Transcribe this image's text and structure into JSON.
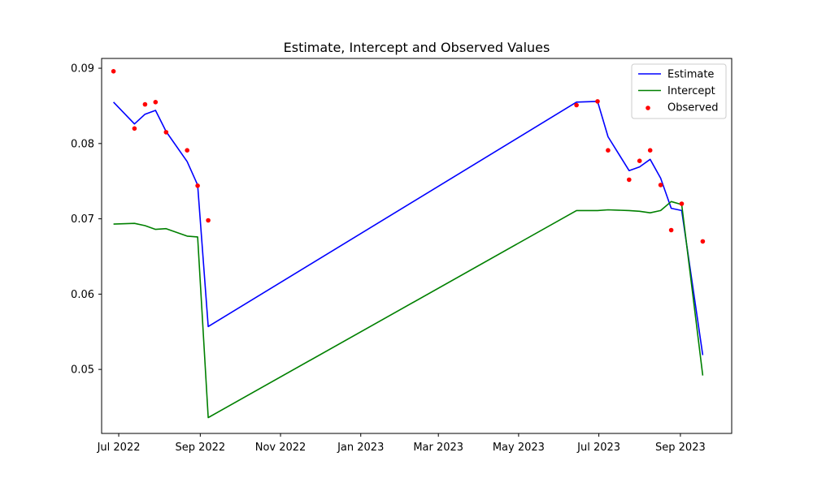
{
  "chart_data": {
    "type": "line",
    "title": "Estimate, Intercept and  Observed Values",
    "xlabel": "",
    "ylabel": "",
    "x_axis_type": "date",
    "xlim": [
      "2022-06-18",
      "2023-10-10"
    ],
    "ylim": [
      0.0415,
      0.0913
    ],
    "x_ticks": [
      {
        "date": "2022-07-01",
        "label": "Jul 2022"
      },
      {
        "date": "2022-09-01",
        "label": "Sep 2022"
      },
      {
        "date": "2022-11-01",
        "label": "Nov 2022"
      },
      {
        "date": "2023-01-01",
        "label": "Jan 2023"
      },
      {
        "date": "2023-03-01",
        "label": "Mar 2023"
      },
      {
        "date": "2023-05-01",
        "label": "May 2023"
      },
      {
        "date": "2023-07-01",
        "label": "Jul 2023"
      },
      {
        "date": "2023-09-01",
        "label": "Sep 2023"
      }
    ],
    "y_ticks": [
      {
        "value": 0.05,
        "label": "0.05"
      },
      {
        "value": 0.06,
        "label": "0.06"
      },
      {
        "value": 0.07,
        "label": "0.07"
      },
      {
        "value": 0.08,
        "label": "0.08"
      },
      {
        "value": 0.09,
        "label": "0.09"
      }
    ],
    "grid": false,
    "legend_position": "top-right",
    "series": [
      {
        "name": "Estimate",
        "kind": "line",
        "color": "#0000ff",
        "x": [
          "2022-06-27",
          "2022-07-13",
          "2022-07-21",
          "2022-07-29",
          "2022-08-06",
          "2022-08-22",
          "2022-08-30",
          "2022-09-07",
          "2023-06-14",
          "2023-06-30",
          "2023-07-08",
          "2023-07-24",
          "2023-08-01",
          "2023-08-09",
          "2023-08-17",
          "2023-08-25",
          "2023-09-02",
          "2023-09-18"
        ],
        "y": [
          0.0855,
          0.0826,
          0.0839,
          0.0844,
          0.0816,
          0.0776,
          0.0745,
          0.0557,
          0.0855,
          0.0856,
          0.0809,
          0.0764,
          0.0769,
          0.0779,
          0.0754,
          0.0714,
          0.0711,
          0.0519
        ]
      },
      {
        "name": "Intercept",
        "kind": "line",
        "color": "#008000",
        "x": [
          "2022-06-27",
          "2022-07-13",
          "2022-07-21",
          "2022-07-29",
          "2022-08-06",
          "2022-08-22",
          "2022-08-30",
          "2022-09-07",
          "2023-06-14",
          "2023-06-30",
          "2023-07-08",
          "2023-07-24",
          "2023-08-01",
          "2023-08-09",
          "2023-08-17",
          "2023-08-25",
          "2023-09-02",
          "2023-09-18"
        ],
        "y": [
          0.0693,
          0.0694,
          0.0691,
          0.0686,
          0.0687,
          0.0677,
          0.0676,
          0.0436,
          0.0711,
          0.0711,
          0.0712,
          0.0711,
          0.071,
          0.0708,
          0.0711,
          0.0723,
          0.0719,
          0.0492
        ]
      },
      {
        "name": "Observed",
        "kind": "scatter",
        "color": "#ff0000",
        "x": [
          "2022-06-27",
          "2022-07-13",
          "2022-07-21",
          "2022-07-29",
          "2022-08-06",
          "2022-08-22",
          "2022-08-30",
          "2022-09-07",
          "2023-06-14",
          "2023-06-30",
          "2023-07-08",
          "2023-07-24",
          "2023-08-01",
          "2023-08-09",
          "2023-08-17",
          "2023-08-25",
          "2023-09-02",
          "2023-09-18"
        ],
        "y": [
          0.0896,
          0.082,
          0.0852,
          0.0855,
          0.0815,
          0.0791,
          0.0744,
          0.0698,
          0.0851,
          0.0856,
          0.0791,
          0.0752,
          0.0777,
          0.0791,
          0.0745,
          0.0685,
          0.072,
          0.067
        ]
      }
    ]
  }
}
